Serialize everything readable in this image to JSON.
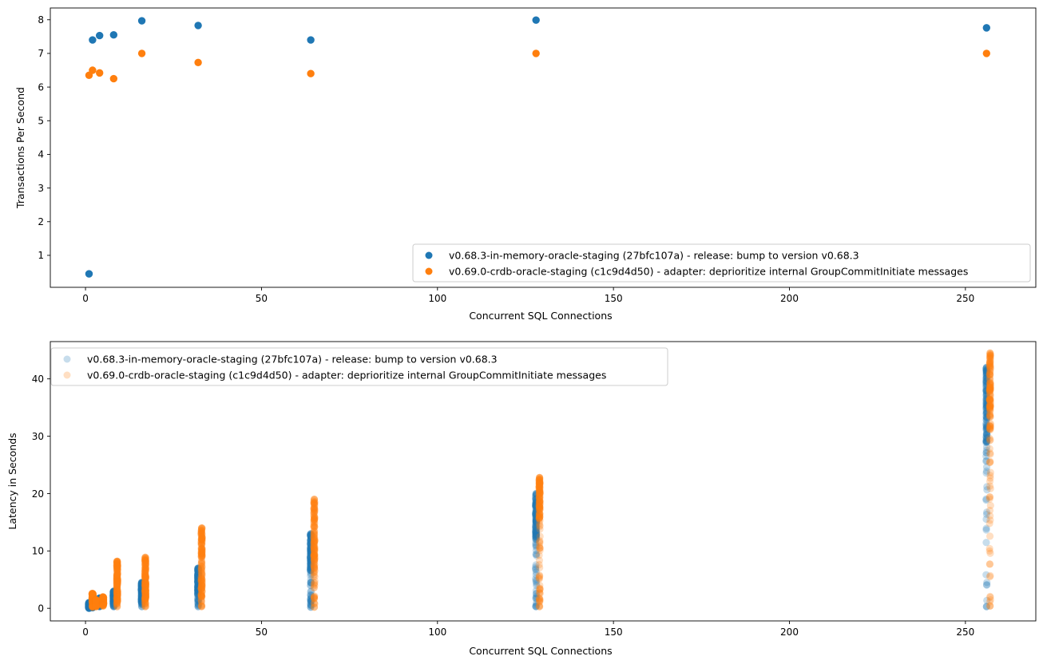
{
  "chart_data": [
    {
      "type": "scatter",
      "title": "",
      "xlabel": "Concurrent SQL Connections",
      "ylabel": "Transactions Per Second",
      "xlim": [
        -10,
        270
      ],
      "ylim": [
        0.05,
        8.35
      ],
      "xticks": [
        0,
        50,
        100,
        150,
        200,
        250
      ],
      "yticks": [
        1,
        2,
        3,
        4,
        5,
        6,
        7,
        8
      ],
      "grid": false,
      "legend_position": "lower-right",
      "series": [
        {
          "name": "v0.68.3-in-memory-oracle-staging (27bfc107a) - release: bump to version v0.68.3",
          "color": "#1f77b4",
          "opacity": 1,
          "points": [
            [
              1,
              0.45
            ],
            [
              2,
              7.4
            ],
            [
              4,
              7.53
            ],
            [
              8,
              7.55
            ],
            [
              16,
              7.97
            ],
            [
              32,
              7.83
            ],
            [
              64,
              7.4
            ],
            [
              128,
              7.99
            ],
            [
              256,
              7.76
            ]
          ]
        },
        {
          "name": "v0.69.0-crdb-oracle-staging (c1c9d4d50) - adapter: deprioritize internal GroupCommitInitiate messages",
          "color": "#ff7f0e",
          "opacity": 1,
          "points": [
            [
              1,
              6.35
            ],
            [
              2,
              6.5
            ],
            [
              4,
              6.42
            ],
            [
              8,
              6.25
            ],
            [
              16,
              7.0
            ],
            [
              32,
              6.73
            ],
            [
              64,
              6.4
            ],
            [
              128,
              7.0
            ],
            [
              256,
              7.0
            ]
          ]
        }
      ]
    },
    {
      "type": "scatter",
      "title": "",
      "xlabel": "Concurrent SQL Connections",
      "ylabel": "Latency in Seconds",
      "xlim": [
        -10,
        270
      ],
      "ylim": [
        -2.2,
        46.5
      ],
      "xticks": [
        0,
        50,
        100,
        150,
        200,
        250
      ],
      "yticks": [
        0,
        10,
        20,
        30,
        40
      ],
      "grid": false,
      "legend_position": "upper-left",
      "series": [
        {
          "name": "v0.68.3-in-memory-oracle-staging (27bfc107a) - release: bump to version v0.68.3",
          "color": "#1f77b4",
          "opacity": 0.25,
          "columns": [
            {
              "x": 1,
              "min": 0.0,
              "max": 1.0,
              "dense_from": 0.0
            },
            {
              "x": 2,
              "min": 0.1,
              "max": 1.2,
              "dense_from": 0.1
            },
            {
              "x": 4,
              "min": 0.3,
              "max": 1.8,
              "dense_from": 0.5
            },
            {
              "x": 8,
              "min": 0.3,
              "max": 3.0,
              "dense_from": 0.8
            },
            {
              "x": 16,
              "min": 0.3,
              "max": 4.5,
              "dense_from": 1.0
            },
            {
              "x": 32,
              "min": 0.3,
              "max": 7.0,
              "dense_from": 2.5
            },
            {
              "x": 64,
              "min": 0.2,
              "max": 13.0,
              "dense_from": 6.5
            },
            {
              "x": 128,
              "min": 0.3,
              "max": 20.0,
              "dense_from": 12.0
            },
            {
              "x": 256,
              "min": 0.3,
              "max": 42.0,
              "dense_from": 28.0
            }
          ]
        },
        {
          "name": "v0.69.0-crdb-oracle-staging (c1c9d4d50) - adapter: deprioritize internal GroupCommitInitiate messages",
          "color": "#ff7f0e",
          "opacity": 0.25,
          "columns": [
            {
              "x": 2,
              "min": 0.2,
              "max": 2.6,
              "dense_from": 0.3
            },
            {
              "x": 3,
              "min": 0.3,
              "max": 1.5,
              "dense_from": 0.4
            },
            {
              "x": 5,
              "min": 0.4,
              "max": 2.0,
              "dense_from": 0.6
            },
            {
              "x": 9,
              "min": 0.3,
              "max": 8.2,
              "dense_from": 0.8
            },
            {
              "x": 17,
              "min": 0.3,
              "max": 8.9,
              "dense_from": 1.5
            },
            {
              "x": 33,
              "min": 0.3,
              "max": 14.0,
              "dense_from": 2.0
            },
            {
              "x": 65,
              "min": 0.2,
              "max": 19.0,
              "dense_from": 7.0
            },
            {
              "x": 129,
              "min": 0.3,
              "max": 22.8,
              "dense_from": 15.5
            },
            {
              "x": 257,
              "min": 0.4,
              "max": 44.5,
              "dense_from": 31.0
            }
          ]
        }
      ]
    }
  ]
}
